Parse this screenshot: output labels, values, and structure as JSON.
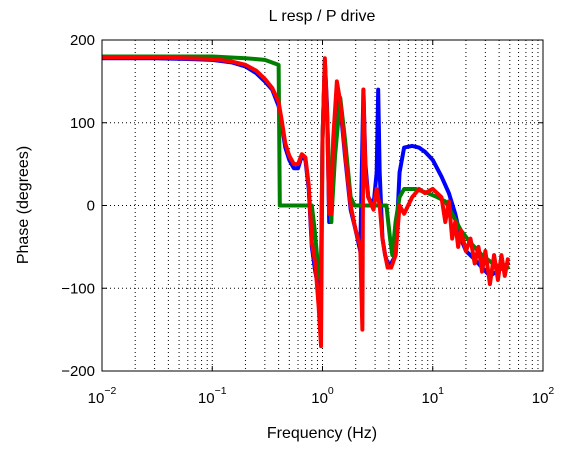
{
  "chart_data": {
    "type": "line",
    "title": "L resp  / P drive",
    "xlabel": "Frequency (Hz)",
    "ylabel": "Phase (degrees)",
    "xscale": "log",
    "xlim": [
      0.01,
      100
    ],
    "ylim": [
      -200,
      200
    ],
    "grid": "dotted",
    "legend": "none",
    "x_ticks": [
      {
        "value": 0.01,
        "base": "10",
        "exp": "−2"
      },
      {
        "value": 0.1,
        "base": "10",
        "exp": "−1"
      },
      {
        "value": 1,
        "base": "10",
        "exp": "0"
      },
      {
        "value": 10,
        "base": "10",
        "exp": "1"
      },
      {
        "value": 100,
        "base": "10",
        "exp": "2"
      }
    ],
    "y_ticks": [
      {
        "value": 200,
        "label": "200"
      },
      {
        "value": 100,
        "label": "100"
      },
      {
        "value": 0,
        "label": "0"
      },
      {
        "value": -100,
        "label": "−100"
      },
      {
        "value": -200,
        "label": "−200"
      }
    ],
    "series": [
      {
        "color": "#0000ff",
        "points": [
          [
            0.01,
            178
          ],
          [
            0.03,
            178
          ],
          [
            0.06,
            177
          ],
          [
            0.1,
            176
          ],
          [
            0.15,
            173
          ],
          [
            0.2,
            168
          ],
          [
            0.25,
            160
          ],
          [
            0.3,
            150
          ],
          [
            0.35,
            140
          ],
          [
            0.4,
            120
          ],
          [
            0.43,
            95
          ],
          [
            0.46,
            70
          ],
          [
            0.5,
            55
          ],
          [
            0.55,
            45
          ],
          [
            0.6,
            45
          ],
          [
            0.65,
            60
          ],
          [
            0.7,
            55
          ],
          [
            0.75,
            20
          ],
          [
            0.8,
            -50
          ],
          [
            0.86,
            -80
          ],
          [
            0.92,
            -100
          ],
          [
            0.97,
            -80
          ],
          [
            1.0,
            80
          ],
          [
            1.05,
            175
          ],
          [
            1.1,
            120
          ],
          [
            1.15,
            -20
          ],
          [
            1.2,
            -20
          ],
          [
            1.25,
            70
          ],
          [
            1.35,
            140
          ],
          [
            1.45,
            120
          ],
          [
            1.6,
            60
          ],
          [
            1.8,
            -5
          ],
          [
            2.0,
            -30
          ],
          [
            2.2,
            -55
          ],
          [
            2.35,
            140
          ],
          [
            2.45,
            50
          ],
          [
            2.6,
            10
          ],
          [
            2.9,
            0
          ],
          [
            3.1,
            40
          ],
          [
            3.2,
            140
          ],
          [
            3.3,
            40
          ],
          [
            3.5,
            -40
          ],
          [
            3.7,
            -60
          ],
          [
            3.9,
            -70
          ],
          [
            4.2,
            -70
          ],
          [
            4.6,
            -60
          ],
          [
            5.0,
            40
          ],
          [
            5.5,
            70
          ],
          [
            6.5,
            72
          ],
          [
            7.5,
            70
          ],
          [
            8.5,
            65
          ],
          [
            10,
            55
          ],
          [
            12,
            35
          ],
          [
            14,
            15
          ],
          [
            16,
            -10
          ],
          [
            18,
            -40
          ],
          [
            20,
            -55
          ],
          [
            24,
            -65
          ],
          [
            28,
            -75
          ],
          [
            33,
            -85
          ],
          [
            38,
            -80
          ],
          [
            43,
            -75
          ],
          [
            48,
            -70
          ]
        ]
      },
      {
        "color": "#008000",
        "points": [
          [
            0.01,
            180
          ],
          [
            0.1,
            180
          ],
          [
            0.2,
            178
          ],
          [
            0.3,
            176
          ],
          [
            0.4,
            170
          ],
          [
            0.41,
            0
          ],
          [
            0.8,
            0
          ],
          [
            0.85,
            -30
          ],
          [
            0.92,
            -80
          ],
          [
            0.97,
            -90
          ],
          [
            1.0,
            80
          ],
          [
            1.05,
            170
          ],
          [
            1.1,
            110
          ],
          [
            1.2,
            -20
          ],
          [
            1.3,
            60
          ],
          [
            1.45,
            130
          ],
          [
            1.6,
            80
          ],
          [
            1.8,
            10
          ],
          [
            1.95,
            0
          ],
          [
            2.8,
            0
          ],
          [
            3.3,
            0
          ],
          [
            3.8,
            0
          ],
          [
            4.1,
            -40
          ],
          [
            4.3,
            -60
          ],
          [
            4.6,
            -20
          ],
          [
            5.0,
            10
          ],
          [
            5.5,
            20
          ],
          [
            7,
            20
          ],
          [
            9,
            15
          ],
          [
            11,
            10
          ],
          [
            13,
            5
          ],
          [
            15,
            -10
          ],
          [
            18,
            -30
          ],
          [
            22,
            -45
          ],
          [
            28,
            -60
          ],
          [
            35,
            -70
          ],
          [
            42,
            -75
          ],
          [
            48,
            -75
          ]
        ]
      },
      {
        "color": "#ff0000",
        "points": [
          [
            0.01,
            179
          ],
          [
            0.03,
            179
          ],
          [
            0.06,
            178
          ],
          [
            0.1,
            177
          ],
          [
            0.15,
            174
          ],
          [
            0.2,
            170
          ],
          [
            0.25,
            163
          ],
          [
            0.3,
            153
          ],
          [
            0.35,
            142
          ],
          [
            0.4,
            125
          ],
          [
            0.43,
            100
          ],
          [
            0.46,
            75
          ],
          [
            0.5,
            60
          ],
          [
            0.55,
            50
          ],
          [
            0.6,
            50
          ],
          [
            0.65,
            62
          ],
          [
            0.7,
            58
          ],
          [
            0.75,
            25
          ],
          [
            0.8,
            -45
          ],
          [
            0.86,
            -70
          ],
          [
            0.92,
            -120
          ],
          [
            0.97,
            -170
          ],
          [
            1.0,
            80
          ],
          [
            1.05,
            178
          ],
          [
            1.1,
            110
          ],
          [
            1.15,
            -10
          ],
          [
            1.2,
            -10
          ],
          [
            1.25,
            80
          ],
          [
            1.35,
            150
          ],
          [
            1.45,
            125
          ],
          [
            1.6,
            65
          ],
          [
            1.8,
            0
          ],
          [
            2.0,
            -30
          ],
          [
            2.2,
            -50
          ],
          [
            2.3,
            -150
          ],
          [
            2.35,
            140
          ],
          [
            2.45,
            40
          ],
          [
            2.6,
            10
          ],
          [
            2.9,
            -5
          ],
          [
            3.1,
            20
          ],
          [
            3.3,
            0
          ],
          [
            3.5,
            -40
          ],
          [
            3.7,
            -60
          ],
          [
            3.9,
            -75
          ],
          [
            4.2,
            -75
          ],
          [
            4.6,
            -60
          ],
          [
            5.0,
            0
          ],
          [
            5.5,
            -10
          ],
          [
            6.5,
            10
          ],
          [
            7.5,
            20
          ],
          [
            8.5,
            15
          ],
          [
            10,
            20
          ],
          [
            12,
            10
          ],
          [
            13,
            -20
          ],
          [
            14,
            5
          ],
          [
            15,
            -40
          ],
          [
            16,
            -20
          ],
          [
            17,
            -50
          ],
          [
            18,
            -30
          ],
          [
            20,
            -55
          ],
          [
            22,
            -40
          ],
          [
            24,
            -70
          ],
          [
            26,
            -50
          ],
          [
            28,
            -80
          ],
          [
            30,
            -55
          ],
          [
            33,
            -95
          ],
          [
            36,
            -60
          ],
          [
            39,
            -90
          ],
          [
            42,
            -60
          ],
          [
            45,
            -85
          ],
          [
            48,
            -65
          ]
        ]
      }
    ]
  }
}
